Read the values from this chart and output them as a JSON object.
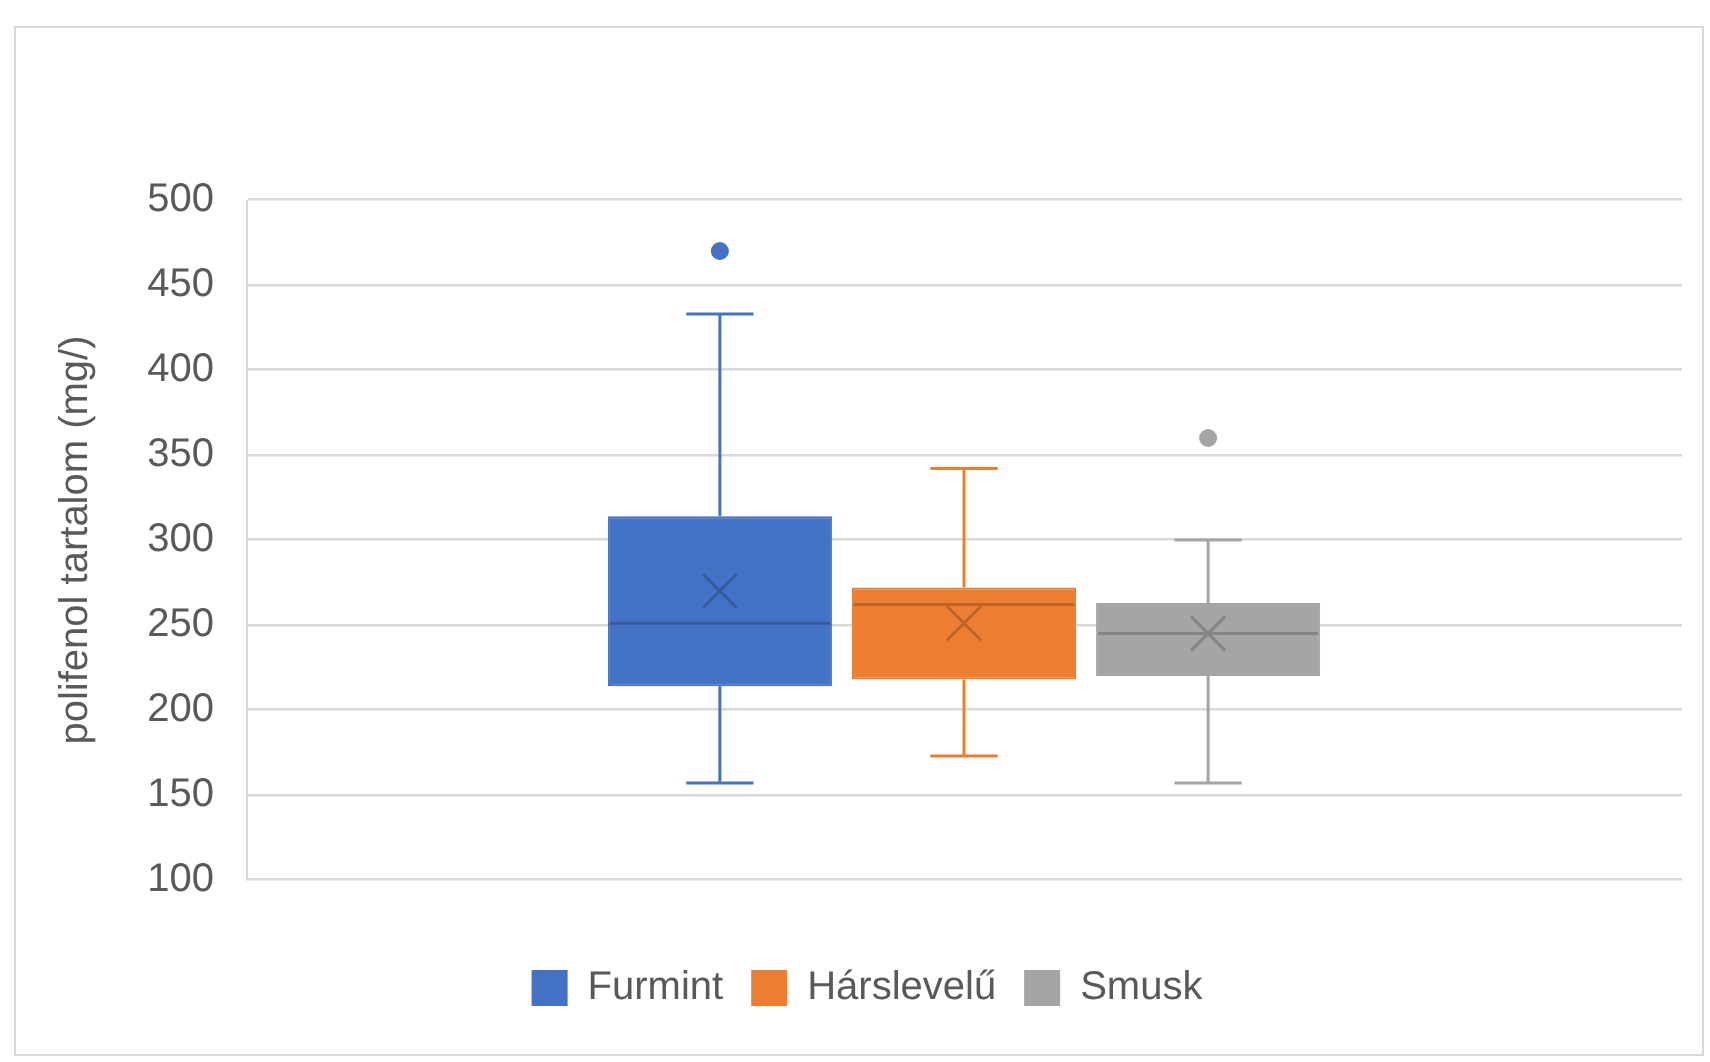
{
  "chart_data": {
    "type": "box",
    "ylabel": "polifenol tartalom (mg/)",
    "categories": [
      null
    ],
    "series": [
      {
        "name": "Furmint",
        "color": "#4472c4",
        "boxes": [
          {
            "low": 157,
            "q1": 214,
            "median": 251,
            "q3": 314,
            "high": 433,
            "mean": 270,
            "outliers": [
              470
            ]
          }
        ]
      },
      {
        "name": "Hárslevelű",
        "color": "#ed7d31",
        "boxes": [
          {
            "low": 173,
            "q1": 218,
            "median": 262,
            "q3": 272,
            "high": 342,
            "mean": 251
          }
        ]
      },
      {
        "name": "Smusk",
        "color": "#a5a5a5",
        "boxes": [
          {
            "low": 157,
            "q1": 220,
            "median": 245,
            "q3": 263,
            "high": 300,
            "mean": 245,
            "outliers": [
              360
            ]
          }
        ]
      }
    ],
    "ylim": [
      100,
      500
    ],
    "yticks": [
      100,
      150,
      200,
      250,
      300,
      350,
      400,
      450,
      500
    ],
    "grid": "y",
    "legend": "bottom"
  }
}
